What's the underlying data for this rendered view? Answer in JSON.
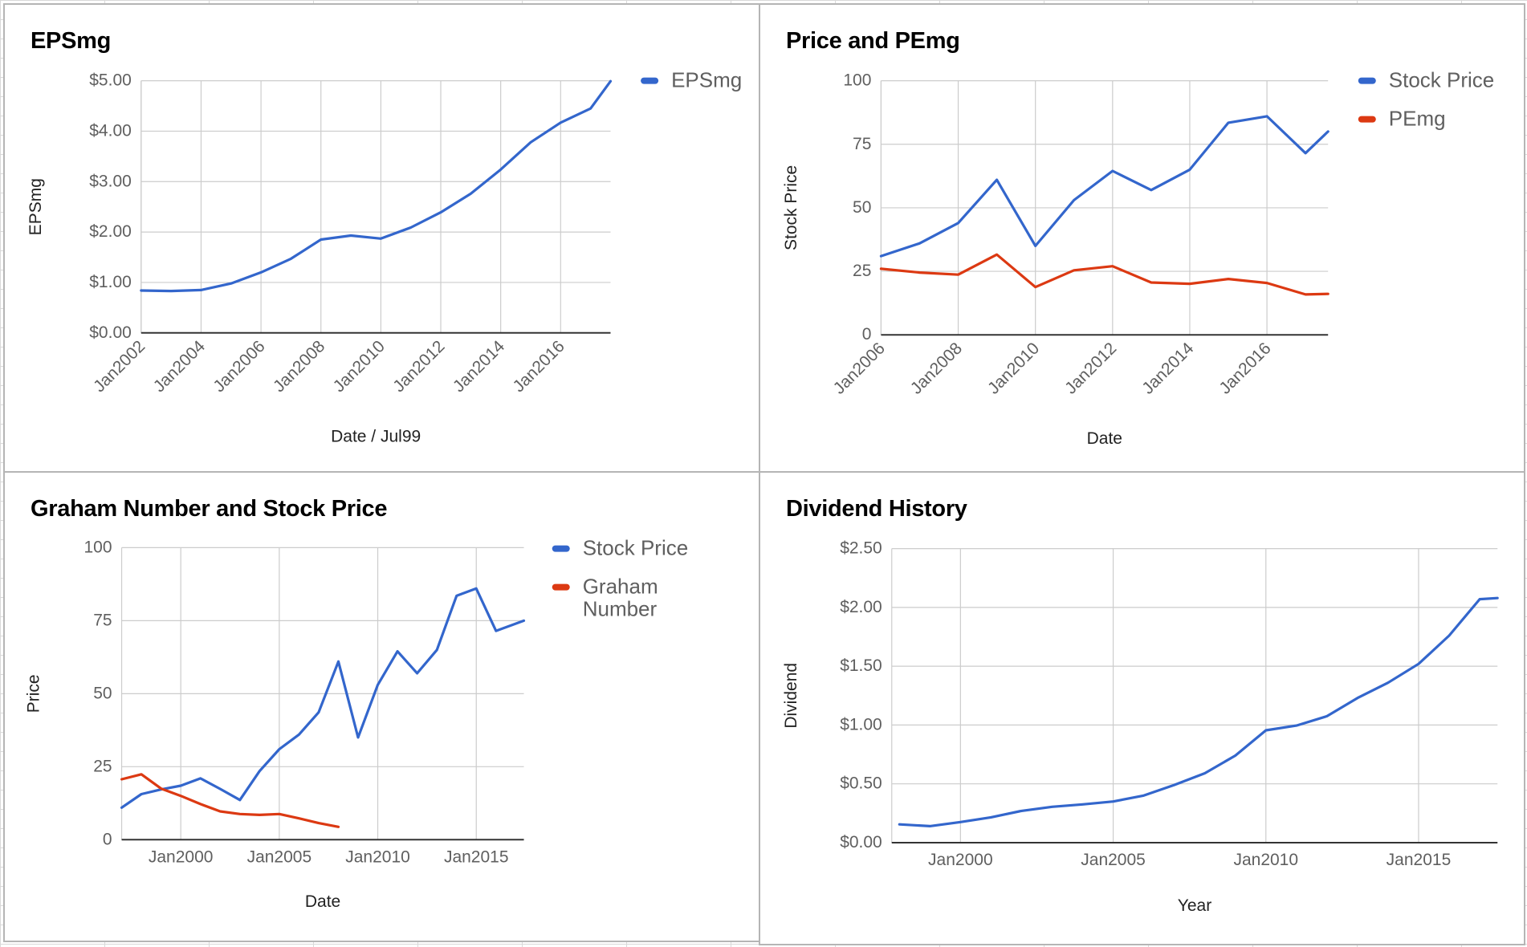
{
  "chart_data": [
    {
      "id": "p1",
      "type": "line",
      "title": "EPSmg",
      "xlabel": "Date / Jul99",
      "ylabel": "EPSmg",
      "x_axis_type": "date",
      "xlim": [
        "2002-01",
        "2017-09"
      ],
      "ylim": [
        0,
        5
      ],
      "x_ticks": [
        "2002-01",
        "2004-01",
        "2006-01",
        "2008-01",
        "2010-01",
        "2012-01",
        "2014-01",
        "2016-01"
      ],
      "x_tick_labels": [
        "Jan2002",
        "Jan2004",
        "Jan2006",
        "Jan2008",
        "Jan2010",
        "Jan2012",
        "Jan2014",
        "Jan2016"
      ],
      "x_tick_rotated": true,
      "y_ticks": [
        0,
        1,
        2,
        3,
        4,
        5
      ],
      "y_tick_labels": [
        "$0.00",
        "$1.00",
        "$2.00",
        "$3.00",
        "$4.00",
        "$5.00"
      ],
      "grid": true,
      "legend": "right",
      "series": [
        {
          "name": "EPSmg",
          "color": "#3366cc",
          "x": [
            "2002-01",
            "2003-01",
            "2004-01",
            "2005-01",
            "2006-01",
            "2007-01",
            "2008-01",
            "2009-01",
            "2010-01",
            "2011-01",
            "2012-01",
            "2013-01",
            "2014-01",
            "2015-01",
            "2016-01",
            "2017-01",
            "2017-09"
          ],
          "values": [
            0.84,
            0.83,
            0.85,
            0.98,
            1.2,
            1.47,
            1.85,
            1.93,
            1.87,
            2.09,
            2.39,
            2.76,
            3.24,
            3.78,
            4.17,
            4.45,
            4.99
          ]
        }
      ]
    },
    {
      "id": "p2",
      "type": "line",
      "title": "Price and PEmg",
      "xlabel": "Date",
      "ylabel": "Stock Price",
      "x_axis_type": "date",
      "xlim": [
        "2006-01",
        "2017-08"
      ],
      "ylim": [
        0,
        100
      ],
      "x_ticks": [
        "2006-01",
        "2008-01",
        "2010-01",
        "2012-01",
        "2014-01",
        "2016-01"
      ],
      "x_tick_labels": [
        "Jan2006",
        "Jan2008",
        "Jan2010",
        "Jan2012",
        "Jan2014",
        "Jan2016"
      ],
      "x_tick_rotated": true,
      "y_ticks": [
        0,
        25,
        50,
        75,
        100
      ],
      "y_tick_labels": [
        "0",
        "25",
        "50",
        "75",
        "100"
      ],
      "grid": true,
      "legend": "right",
      "series": [
        {
          "name": "Stock Price",
          "color": "#3366cc",
          "x": [
            "2006-01",
            "2007-01",
            "2008-01",
            "2009-01",
            "2010-01",
            "2011-01",
            "2012-01",
            "2013-01",
            "2014-01",
            "2015-01",
            "2016-01",
            "2017-01",
            "2017-08"
          ],
          "values": [
            31,
            36,
            44,
            61,
            35,
            53,
            64.5,
            57,
            65,
            83.5,
            86,
            71.5,
            80
          ]
        },
        {
          "name": "PEmg",
          "color": "#dc3912",
          "x": [
            "2006-01",
            "2007-01",
            "2008-01",
            "2009-01",
            "2010-01",
            "2011-01",
            "2012-01",
            "2013-01",
            "2014-01",
            "2015-01",
            "2016-01",
            "2017-01",
            "2017-08"
          ],
          "values": [
            26,
            24.5,
            23.7,
            31.6,
            18.8,
            25.4,
            27,
            20.6,
            20.1,
            22,
            20.4,
            15.9,
            16.1
          ]
        }
      ]
    },
    {
      "id": "p3",
      "type": "line",
      "title": "Graham Number and Stock Price",
      "xlabel": "Date",
      "ylabel": "Price",
      "x_axis_type": "date",
      "xlim": [
        "1997-01",
        "2017-06"
      ],
      "ylim": [
        0,
        100
      ],
      "x_ticks": [
        "2000-01",
        "2005-01",
        "2010-01",
        "2015-01"
      ],
      "x_tick_labels": [
        "Jan2000",
        "Jan2005",
        "Jan2010",
        "Jan2015"
      ],
      "x_tick_rotated": false,
      "y_ticks": [
        0,
        25,
        50,
        75,
        100
      ],
      "y_tick_labels": [
        "0",
        "25",
        "50",
        "75",
        "100"
      ],
      "grid": true,
      "legend": "right",
      "series": [
        {
          "name": "Stock Price",
          "color": "#3366cc",
          "x": [
            "1997-01",
            "1998-01",
            "1999-01",
            "2000-01",
            "2001-01",
            "2002-01",
            "2003-01",
            "2004-01",
            "2005-01",
            "2006-01",
            "2007-01",
            "2008-01",
            "2009-01",
            "2010-01",
            "2011-01",
            "2012-01",
            "2013-01",
            "2014-01",
            "2015-01",
            "2016-01",
            "2017-06"
          ],
          "values": [
            11,
            15.6,
            17.2,
            18.5,
            21,
            17.4,
            13.6,
            23.5,
            31,
            36,
            43.6,
            61,
            35,
            53,
            64.5,
            57,
            65,
            83.5,
            86,
            71.5,
            75
          ]
        },
        {
          "name": "Graham Number",
          "color": "#dc3912",
          "x": [
            "1997-01",
            "1998-01",
            "1999-01",
            "2000-01",
            "2001-01",
            "2002-01",
            "2003-01",
            "2004-01",
            "2005-01",
            "2006-01",
            "2007-01",
            "2008-01"
          ],
          "values": [
            20.7,
            22.4,
            17.5,
            15,
            12.2,
            9.7,
            8.8,
            8.5,
            8.8,
            7.3,
            5.7,
            4.4
          ]
        }
      ]
    },
    {
      "id": "p4",
      "type": "line",
      "title": "Dividend History",
      "xlabel": "Year",
      "ylabel": "Dividend",
      "x_axis_type": "date",
      "xlim": [
        "1997-10",
        "2017-08"
      ],
      "ylim": [
        0,
        2.5
      ],
      "x_ticks": [
        "2000-01",
        "2005-01",
        "2010-01",
        "2015-01"
      ],
      "x_tick_labels": [
        "Jan2000",
        "Jan2005",
        "Jan2010",
        "Jan2015"
      ],
      "x_tick_rotated": false,
      "y_ticks": [
        0,
        0.5,
        1,
        1.5,
        2,
        2.5
      ],
      "y_tick_labels": [
        "$0.00",
        "$0.50",
        "$1.00",
        "$1.50",
        "$2.00",
        "$2.50"
      ],
      "grid": true,
      "legend": "none",
      "series": [
        {
          "name": "",
          "color": "#3366cc",
          "x": [
            "1998-01",
            "1999-01",
            "2000-01",
            "2001-01",
            "2002-01",
            "2003-01",
            "2004-01",
            "2005-01",
            "2006-01",
            "2007-01",
            "2008-01",
            "2009-01",
            "2010-01",
            "2011-01",
            "2012-01",
            "2013-01",
            "2014-01",
            "2015-01",
            "2016-01",
            "2017-01",
            "2017-08"
          ],
          "values": [
            0.155,
            0.14,
            0.175,
            0.215,
            0.27,
            0.305,
            0.325,
            0.35,
            0.4,
            0.49,
            0.59,
            0.74,
            0.955,
            0.995,
            1.075,
            1.23,
            1.36,
            1.52,
            1.76,
            2.07,
            2.08
          ]
        }
      ]
    }
  ]
}
